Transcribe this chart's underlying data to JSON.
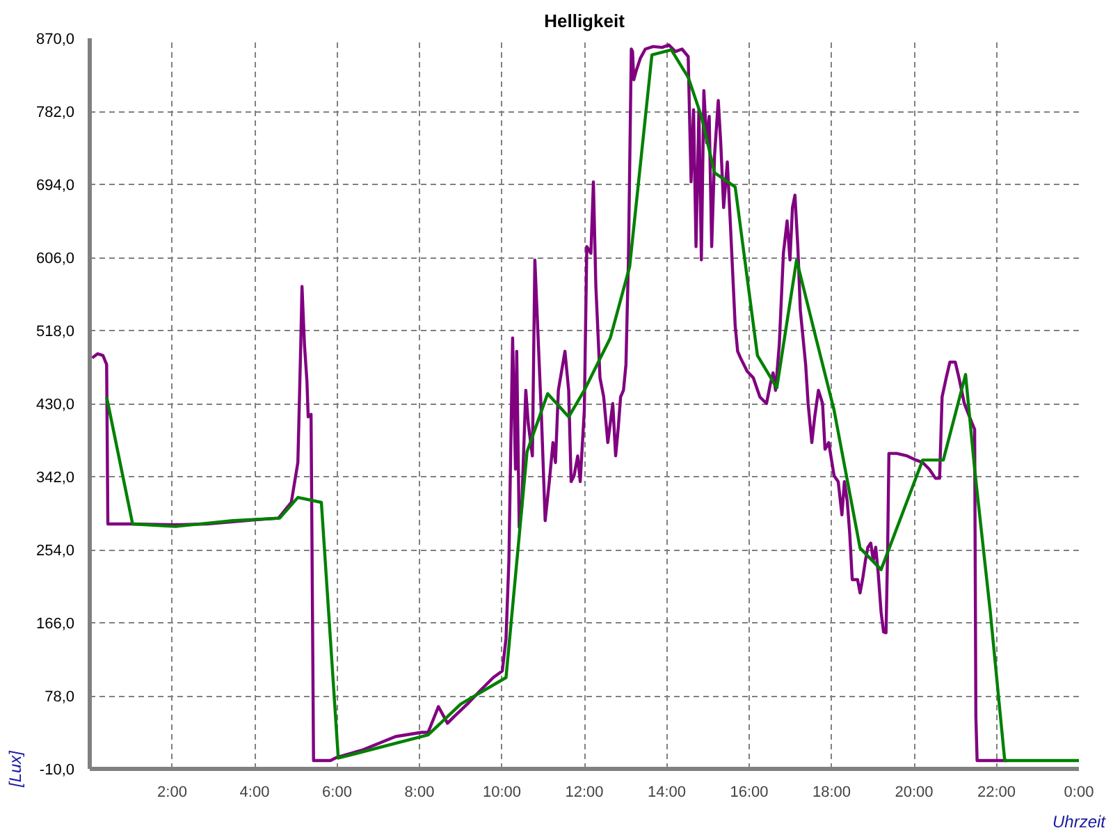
{
  "chart_data": {
    "type": "line",
    "title": "Helligkeit",
    "xlabel": "Uhrzeit",
    "ylabel": "[Lux]",
    "xlim": [
      0,
      24
    ],
    "ylim": [
      -10,
      870
    ],
    "xticks": [
      {
        "value": 0,
        "label": null
      },
      {
        "value": 2,
        "label": "2:00"
      },
      {
        "value": 4,
        "label": "4:00"
      },
      {
        "value": 6,
        "label": "6:00"
      },
      {
        "value": 8,
        "label": "8:00"
      },
      {
        "value": 10,
        "label": "10:00"
      },
      {
        "value": 12,
        "label": "12:00"
      },
      {
        "value": 14,
        "label": "14:00"
      },
      {
        "value": 16,
        "label": "16:00"
      },
      {
        "value": 18,
        "label": "18:00"
      },
      {
        "value": 20,
        "label": "20:00"
      },
      {
        "value": 22,
        "label": "22:00"
      },
      {
        "value": 24,
        "label": "0:00"
      }
    ],
    "yticks": [
      {
        "value": -10,
        "label": "-10,0"
      },
      {
        "value": 78,
        "label": "78,0"
      },
      {
        "value": 166,
        "label": "166,0"
      },
      {
        "value": 254,
        "label": "254,0"
      },
      {
        "value": 342,
        "label": "342,0"
      },
      {
        "value": 430,
        "label": "430,0"
      },
      {
        "value": 518,
        "label": "518,0"
      },
      {
        "value": 606,
        "label": "606,0"
      },
      {
        "value": 694,
        "label": "694,0"
      },
      {
        "value": 782,
        "label": "782,0"
      },
      {
        "value": 870,
        "label": "870,0"
      }
    ],
    "grid": true,
    "marker": "none",
    "line_style": "solid",
    "series": [
      {
        "color": "#800080",
        "x": [
          0.06,
          0.19,
          0.32,
          0.41,
          0.44,
          1.01,
          2.05,
          2.84,
          4.01,
          4.58,
          4.89,
          5.05,
          5.12,
          5.15,
          5.21,
          5.27,
          5.3,
          5.37,
          5.43,
          5.84,
          6.0,
          6.63,
          7.42,
          8.05,
          8.21,
          8.46,
          8.68,
          8.84,
          9.16,
          9.47,
          9.79,
          10.01,
          10.1,
          10.17,
          10.26,
          10.33,
          10.36,
          10.42,
          10.48,
          10.58,
          10.64,
          10.74,
          10.8,
          10.86,
          10.96,
          11.05,
          11.15,
          11.24,
          11.3,
          11.37,
          11.53,
          11.62,
          11.68,
          11.75,
          11.84,
          11.9,
          12.0,
          12.06,
          12.16,
          12.22,
          12.28,
          12.38,
          12.47,
          12.57,
          12.69,
          12.76,
          12.82,
          12.88,
          12.95,
          13.01,
          13.07,
          13.14,
          13.17,
          13.2,
          13.26,
          13.36,
          13.48,
          13.67,
          13.89,
          14.05,
          14.21,
          14.37,
          14.52,
          14.59,
          14.65,
          14.71,
          14.78,
          14.84,
          14.9,
          14.97,
          15.03,
          15.09,
          15.16,
          15.25,
          15.31,
          15.38,
          15.47,
          15.54,
          15.6,
          15.66,
          15.72,
          15.79,
          15.95,
          16.1,
          16.26,
          16.42,
          16.51,
          16.58,
          16.64,
          16.73,
          16.83,
          16.92,
          16.99,
          17.05,
          17.11,
          17.18,
          17.24,
          17.37,
          17.43,
          17.52,
          17.59,
          17.68,
          17.78,
          17.84,
          17.93,
          18.06,
          18.16,
          18.25,
          18.31,
          18.38,
          18.44,
          18.5,
          18.63,
          18.69,
          18.76,
          18.82,
          18.88,
          18.95,
          19.01,
          19.07,
          19.13,
          19.2,
          19.26,
          19.32,
          19.36,
          19.39,
          19.58,
          19.83,
          20.05,
          20.21,
          20.37,
          20.52,
          20.62,
          20.68,
          20.78,
          20.87,
          21.0,
          21.09,
          21.22,
          21.41,
          21.47,
          21.5,
          21.53,
          22.26
        ],
        "values": [
          485,
          490,
          488,
          477,
          285,
          285,
          284,
          285,
          290,
          292,
          311,
          359,
          501,
          571,
          501,
          457,
          414,
          417,
          0,
          0,
          4,
          13,
          29,
          34,
          34,
          65,
          45,
          53,
          68,
          84,
          100,
          108,
          147,
          241,
          509,
          351,
          493,
          281,
          304,
          446,
          406,
          367,
          603,
          532,
          414,
          289,
          336,
          383,
          359,
          446,
          493,
          446,
          336,
          343,
          367,
          336,
          422,
          619,
          611,
          697,
          571,
          461,
          438,
          383,
          430,
          367,
          399,
          438,
          446,
          477,
          603,
          857,
          854,
          820,
          831,
          846,
          857,
          860,
          859,
          862,
          854,
          857,
          848,
          697,
          784,
          619,
          784,
          603,
          807,
          744,
          776,
          619,
          729,
          795,
          744,
          666,
          721,
          650,
          587,
          524,
          493,
          485,
          469,
          461,
          438,
          430,
          453,
          467,
          446,
          501,
          611,
          650,
          603,
          666,
          681,
          619,
          543,
          477,
          430,
          383,
          414,
          446,
          430,
          375,
          383,
          343,
          336,
          296,
          336,
          312,
          273,
          218,
          218,
          202,
          221,
          241,
          257,
          262,
          241,
          257,
          226,
          179,
          155,
          154,
          257,
          370,
          370,
          367,
          362,
          359,
          351,
          340,
          340,
          438,
          461,
          480,
          480,
          461,
          430,
          406,
          399,
          53,
          0,
          0
        ]
      },
      {
        "color": "#008000",
        "x": [
          0.41,
          1.04,
          2.08,
          3.47,
          4.61,
          5.05,
          5.62,
          6.03,
          8.21,
          9.0,
          10.1,
          10.61,
          11.11,
          11.62,
          12.0,
          12.63,
          13.1,
          13.64,
          14.11,
          14.52,
          14.84,
          15.16,
          15.66,
          16.2,
          16.67,
          17.15,
          17.62,
          18.06,
          18.69,
          19.2,
          20.21,
          20.71,
          21.25,
          21.47,
          21.85,
          22.2,
          24.0
        ],
        "values": [
          438,
          285,
          282,
          289,
          292,
          317,
          311,
          3,
          31,
          68,
          100,
          372,
          442,
          414,
          446,
          509,
          595,
          850,
          856,
          823,
          776,
          708,
          691,
          488,
          449,
          603,
          509,
          422,
          256,
          230,
          362,
          362,
          465,
          351,
          179,
          0,
          0
        ]
      }
    ]
  }
}
